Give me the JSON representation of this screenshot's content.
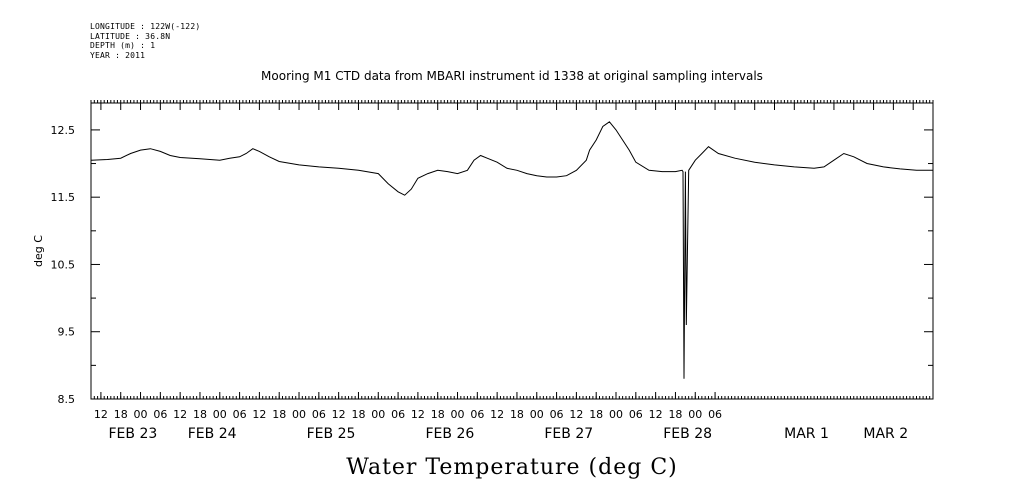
{
  "metadata": {
    "longitude": "LONGITUDE : 122W(-122)",
    "latitude": "LATITUDE : 36.8N",
    "depth": "DEPTH (m) : 1",
    "year": "YEAR : 2011"
  },
  "chart_data": {
    "type": "line",
    "title": "Mooring M1 CTD data from MBARI instrument id 1338 at original sampling intervals",
    "xlabel": "Water Temperature (deg C)",
    "ylabel": "deg C",
    "ylim": [
      8.5,
      12.9
    ],
    "xlim_hours": [
      -15,
      240
    ],
    "yticks": [
      "12.5",
      "11.5",
      "10.5",
      "9.5",
      "8.5"
    ],
    "ytick_values": [
      12.5,
      11.5,
      10.5,
      9.5,
      8.5
    ],
    "hour_ticks": [
      "12",
      "18",
      "00",
      "06",
      "12",
      "18",
      "00",
      "06",
      "12",
      "18",
      "00",
      "06",
      "12",
      "18",
      "00",
      "06",
      "12",
      "18",
      "00",
      "06",
      "12",
      "18",
      "00",
      "06",
      "12",
      "18",
      "00",
      "06",
      "12",
      "18",
      "00",
      "06"
    ],
    "date_labels": [
      "FEB 23",
      "FEB 24",
      "FEB 25",
      "FEB 26",
      "FEB 27",
      "FEB 28",
      "MAR  1",
      "MAR  2"
    ],
    "date_label_hours": [
      -12,
      12,
      48,
      84,
      120,
      156,
      192,
      216
    ],
    "grid": false,
    "series": [
      {
        "x": [
          -15,
          -10,
          -6,
          -3,
          0,
          3,
          6,
          9,
          12,
          18,
          24,
          27,
          30,
          32,
          34,
          36,
          39,
          42,
          48,
          54,
          60,
          66,
          72,
          75,
          78,
          80,
          82,
          84,
          87,
          90,
          93,
          96,
          99,
          101,
          103,
          105,
          108,
          111,
          114,
          117,
          120,
          123,
          126,
          129,
          132,
          135,
          136,
          138,
          140,
          142,
          144,
          146,
          148,
          150,
          154,
          158,
          162,
          164,
          164.3,
          164.6,
          165,
          165.3,
          166,
          168,
          170,
          172,
          175,
          180,
          186,
          192,
          198,
          204,
          207,
          210,
          213,
          216,
          220,
          225,
          230,
          235,
          240
        ],
        "values": [
          12.05,
          12.06,
          12.08,
          12.15,
          12.2,
          12.22,
          12.18,
          12.12,
          12.09,
          12.07,
          12.05,
          12.08,
          12.1,
          12.15,
          12.22,
          12.18,
          12.1,
          12.03,
          11.98,
          11.95,
          11.93,
          11.9,
          11.85,
          11.7,
          11.58,
          11.53,
          11.62,
          11.78,
          11.85,
          11.9,
          11.88,
          11.85,
          11.9,
          12.05,
          12.12,
          12.08,
          12.02,
          11.93,
          11.9,
          11.85,
          11.82,
          11.8,
          11.8,
          11.82,
          11.9,
          12.05,
          12.2,
          12.35,
          12.55,
          12.62,
          12.5,
          12.35,
          12.2,
          12.02,
          11.9,
          11.88,
          11.88,
          11.9,
          11.88,
          8.8,
          11.88,
          9.6,
          11.9,
          12.05,
          12.15,
          12.25,
          12.15,
          12.08,
          12.02,
          11.98,
          11.95,
          11.93,
          11.95,
          12.05,
          12.15,
          12.1,
          12.0,
          11.95,
          11.92,
          11.9,
          11.9
        ]
      }
    ]
  }
}
